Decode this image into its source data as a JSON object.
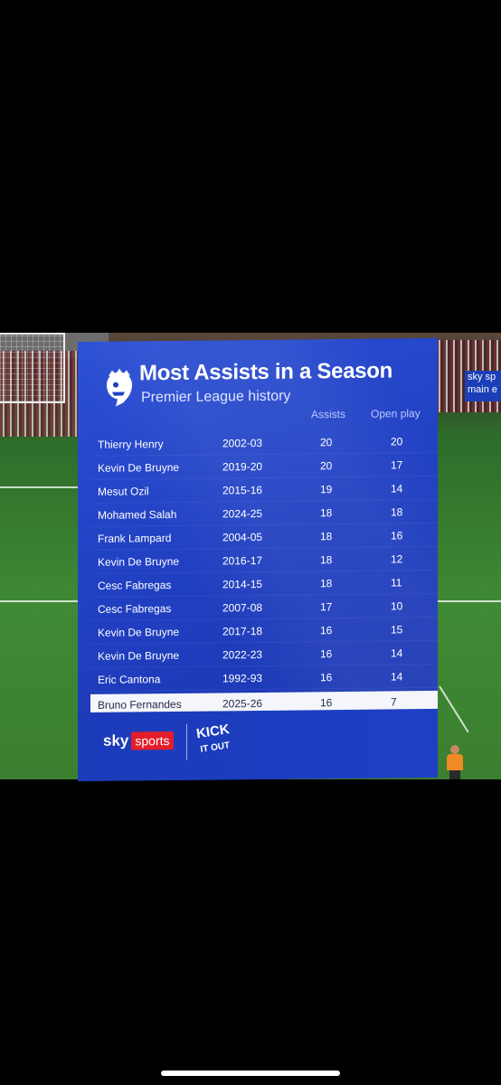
{
  "graphic": {
    "title": "Most Assists in a Season",
    "subtitle": "Premier League history",
    "columns": {
      "assists": "Assists",
      "open_play": "Open play"
    },
    "rows": [
      {
        "name": "Thierry Henry",
        "season": "2002-03",
        "assists": "20",
        "open_play": "20"
      },
      {
        "name": "Kevin De Bruyne",
        "season": "2019-20",
        "assists": "20",
        "open_play": "17"
      },
      {
        "name": "Mesut Ozil",
        "season": "2015-16",
        "assists": "19",
        "open_play": "14"
      },
      {
        "name": "Mohamed Salah",
        "season": "2024-25",
        "assists": "18",
        "open_play": "18"
      },
      {
        "name": "Frank Lampard",
        "season": "2004-05",
        "assists": "18",
        "open_play": "16"
      },
      {
        "name": "Kevin De Bruyne",
        "season": "2016-17",
        "assists": "18",
        "open_play": "12"
      },
      {
        "name": "Cesc Fabregas",
        "season": "2014-15",
        "assists": "18",
        "open_play": "11"
      },
      {
        "name": "Cesc Fabregas",
        "season": "2007-08",
        "assists": "17",
        "open_play": "10"
      },
      {
        "name": "Kevin De Bruyne",
        "season": "2017-18",
        "assists": "16",
        "open_play": "15"
      },
      {
        "name": "Kevin De Bruyne",
        "season": "2022-23",
        "assists": "16",
        "open_play": "14"
      },
      {
        "name": "Eric Cantona",
        "season": "1992-93",
        "assists": "16",
        "open_play": "14"
      },
      {
        "name": "Bruno Fernandes",
        "season": "2025-26",
        "assists": "16",
        "open_play": "7"
      }
    ],
    "footer": {
      "sky": "sky",
      "sports": "sports",
      "kick_line1": "KICK",
      "kick_line2": "IT OUT"
    }
  },
  "background": {
    "sky_board_line1": "sky sp",
    "sky_board_line2": "main e"
  },
  "colors": {
    "graphic_blue": "#2140c2",
    "highlight_row": "#f4f6fb",
    "sky_red": "#e21e2c",
    "background": "#000000"
  },
  "icons": {
    "league_logo": "premier-league-lion-icon"
  }
}
